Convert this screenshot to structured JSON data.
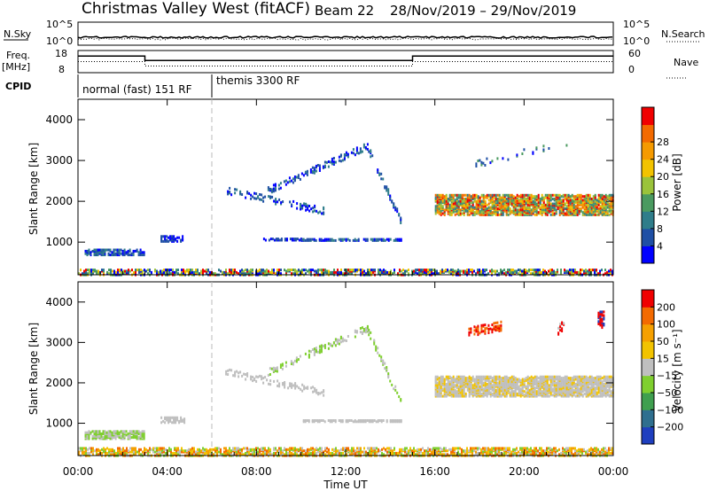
{
  "header": {
    "station": "Christmas Valley West (fitACF)",
    "beam": "Beam 22",
    "dates": "28/Nov/2019 – 29/Nov/2019"
  },
  "aux": {
    "nsky_label": "N.Sky",
    "nsky_ticks": [
      "10^5",
      "10^0"
    ],
    "nsearch_label": "N.Search",
    "nsearch_ticks": [
      "10^5",
      "10^0"
    ],
    "freq_label": "Freq.",
    "freq_unit": "[MHz]",
    "freq_ticks": [
      "18",
      "8"
    ],
    "nave_label": "Nave",
    "nave_ticks": [
      "60",
      "0"
    ],
    "cpid_label": "CPID",
    "cpid_modes": [
      {
        "label": "normal (fast) 151 RF",
        "start_h": 0,
        "end_h": 6
      },
      {
        "label": "themis 3300 RF",
        "start_h": 6,
        "end_h": 24
      }
    ],
    "freq_steps": [
      {
        "start_h": 0,
        "end_h": 3,
        "value": 12
      },
      {
        "start_h": 3,
        "end_h": 15,
        "value": 10
      },
      {
        "start_h": 15,
        "end_h": 24,
        "value": 12
      }
    ]
  },
  "chart_data": [
    {
      "type": "heatmap",
      "name": "power",
      "xlabel": "",
      "ylabel": "Slant Range [km]",
      "xlim": [
        0,
        24
      ],
      "ylim": [
        200,
        4500
      ],
      "y_ticks": [
        "1000",
        "2000",
        "3000",
        "4000"
      ],
      "colorbar": {
        "label": "Power [dB]",
        "ticks": [
          "4",
          "8",
          "12",
          "16",
          "20",
          "24",
          "28"
        ],
        "colors": [
          "#0000ff",
          "#1f4fa5",
          "#2f7d8a",
          "#4a9a60",
          "#9ac33b",
          "#f2c300",
          "#f59a00",
          "#f36a00",
          "#f00000"
        ]
      },
      "regions": [
        {
          "x0": 0.0,
          "x1": 24.0,
          "y0": 230,
          "y1": 380,
          "density": 0.55,
          "colors": [
            0,
            1,
            2,
            3,
            4,
            5,
            8
          ]
        },
        {
          "x0": 0.3,
          "x1": 3.0,
          "y0": 720,
          "y1": 870,
          "density": 0.7,
          "colors": [
            0,
            1,
            2
          ]
        },
        {
          "x0": 3.7,
          "x1": 4.8,
          "y0": 1050,
          "y1": 1180,
          "density": 0.6,
          "colors": [
            0,
            1
          ]
        },
        {
          "x0": 6.6,
          "x1": 11.0,
          "y0": 2300,
          "y1": 1800,
          "density": 0.25,
          "colors": [
            0,
            1,
            2
          ]
        },
        {
          "x0": 8.5,
          "x1": 13.0,
          "y0": 2300,
          "y1": 3400,
          "density": 0.3,
          "colors": [
            0,
            1,
            2
          ]
        },
        {
          "x0": 13.0,
          "x1": 14.5,
          "y0": 3300,
          "y1": 1500,
          "density": 0.35,
          "colors": [
            0,
            1,
            2
          ]
        },
        {
          "x0": 8.3,
          "x1": 10.0,
          "y0": 1080,
          "y1": 1130,
          "density": 0.6,
          "colors": [
            0,
            1
          ]
        },
        {
          "x0": 10.0,
          "x1": 14.5,
          "y0": 1070,
          "y1": 1110,
          "density": 0.7,
          "colors": [
            0,
            1,
            2
          ]
        },
        {
          "x0": 16.0,
          "x1": 24.0,
          "y0": 1700,
          "y1": 2200,
          "density": 0.7,
          "colors": [
            2,
            3,
            4,
            5,
            6,
            7,
            8
          ]
        },
        {
          "x0": 17.5,
          "x1": 22.0,
          "y0": 2900,
          "y1": 3500,
          "density": 0.08,
          "colors": [
            0,
            1,
            3
          ]
        }
      ]
    },
    {
      "type": "heatmap",
      "name": "velocity",
      "xlabel": "Time UT",
      "ylabel": "Slant Range [km]",
      "xlim": [
        0,
        24
      ],
      "ylim": [
        200,
        4500
      ],
      "x_ticks": [
        "00:00",
        "04:00",
        "08:00",
        "12:00",
        "16:00",
        "20:00",
        "00:00"
      ],
      "y_ticks": [
        "1000",
        "2000",
        "3000",
        "4000"
      ],
      "colorbar": {
        "label": "Velocity [m s⁻¹]",
        "ticks": [
          "200",
          "100",
          "50",
          "15",
          "−15",
          "−50",
          "−100",
          "−200"
        ],
        "colors": [
          "#1f3fbf",
          "#2f6f8f",
          "#3f9f4f",
          "#7fcf2f",
          "#bfbfbf",
          "#f2c300",
          "#f5a000",
          "#f36a00",
          "#f00000"
        ]
      },
      "regions": [
        {
          "x0": 0.0,
          "x1": 24.0,
          "y0": 230,
          "y1": 420,
          "density": 0.6,
          "colors": [
            3,
            4,
            5,
            6,
            7
          ]
        },
        {
          "x0": 0.3,
          "x1": 3.0,
          "y0": 650,
          "y1": 850,
          "density": 0.7,
          "colors": [
            3,
            4
          ]
        },
        {
          "x0": 3.7,
          "x1": 4.8,
          "y0": 1050,
          "y1": 1180,
          "density": 0.6,
          "colors": [
            4
          ]
        },
        {
          "x0": 6.6,
          "x1": 11.0,
          "y0": 2300,
          "y1": 1800,
          "density": 0.25,
          "colors": [
            4
          ]
        },
        {
          "x0": 8.5,
          "x1": 13.0,
          "y0": 2300,
          "y1": 3400,
          "density": 0.3,
          "colors": [
            3,
            4
          ]
        },
        {
          "x0": 13.0,
          "x1": 14.5,
          "y0": 3300,
          "y1": 1500,
          "density": 0.35,
          "colors": [
            3,
            4
          ]
        },
        {
          "x0": 10.0,
          "x1": 14.5,
          "y0": 1070,
          "y1": 1110,
          "density": 0.7,
          "colors": [
            4
          ]
        },
        {
          "x0": 16.0,
          "x1": 24.0,
          "y0": 1700,
          "y1": 2200,
          "density": 0.75,
          "colors": [
            4,
            4,
            4,
            5
          ]
        },
        {
          "x0": 17.5,
          "x1": 19.0,
          "y0": 3300,
          "y1": 3450,
          "density": 0.4,
          "colors": [
            7,
            8
          ]
        },
        {
          "x0": 21.5,
          "x1": 21.8,
          "y0": 3350,
          "y1": 3500,
          "density": 0.4,
          "colors": [
            8,
            4
          ]
        },
        {
          "x0": 23.3,
          "x1": 23.6,
          "y0": 3400,
          "y1": 3800,
          "density": 0.5,
          "colors": [
            0,
            8
          ]
        }
      ]
    }
  ]
}
